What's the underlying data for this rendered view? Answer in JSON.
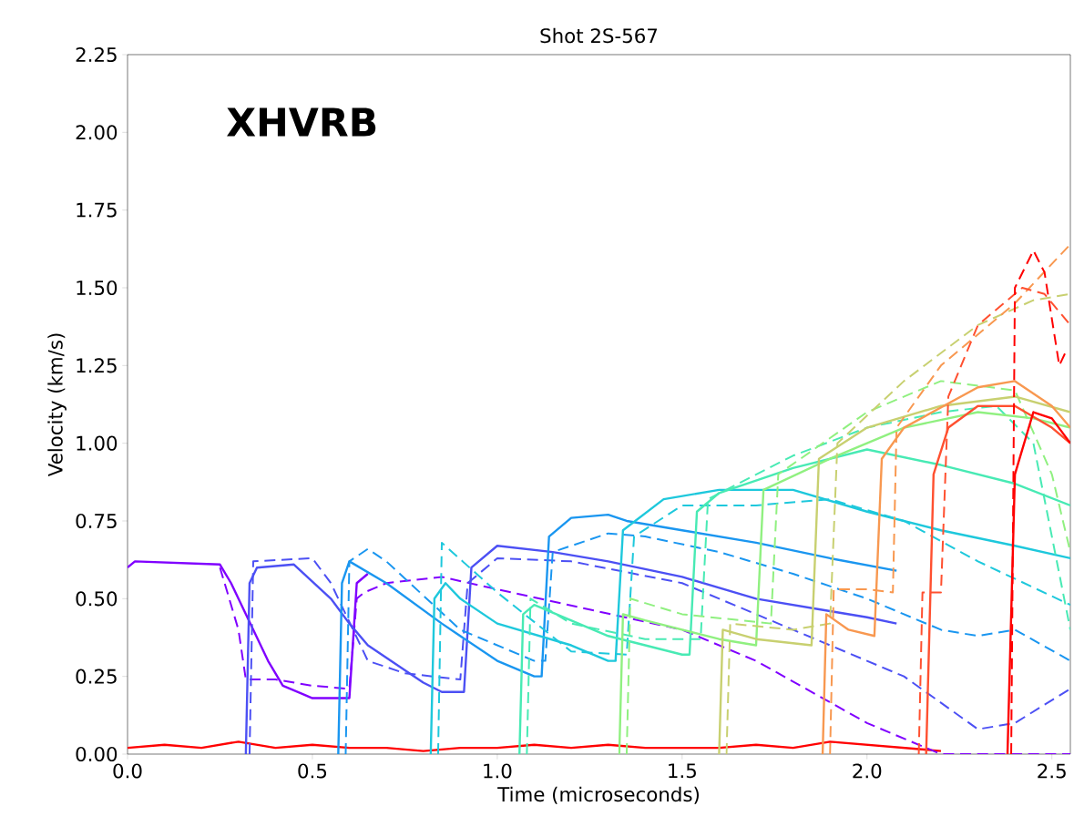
{
  "chart_data": {
    "type": "line",
    "title": "Shot 2S-567",
    "xlabel": "Time (microseconds)",
    "ylabel": "Velocity (km/s)",
    "annotations": [
      "XHVRB"
    ],
    "xlim": [
      0,
      2.55
    ],
    "ylim": [
      0,
      2.25
    ],
    "xticks": [
      {
        "value": 0,
        "label": "0.0"
      },
      {
        "value": 0.5,
        "label": "0.5"
      },
      {
        "value": 1,
        "label": "1.0"
      },
      {
        "value": 1.5,
        "label": "1.5"
      },
      {
        "value": 2,
        "label": "2.0"
      },
      {
        "value": 2.5,
        "label": "2.5"
      }
    ],
    "yticks": [
      {
        "value": 0,
        "label": "0.00"
      },
      {
        "value": 0.25,
        "label": "0.25"
      },
      {
        "value": 0.5,
        "label": "0.50"
      },
      {
        "value": 0.75,
        "label": "0.75"
      },
      {
        "value": 1,
        "label": "1.00"
      },
      {
        "value": 1.25,
        "label": "1.25"
      },
      {
        "value": 1.5,
        "label": "1.50"
      },
      {
        "value": 1.75,
        "label": "1.75"
      },
      {
        "value": 2,
        "label": "2.00"
      },
      {
        "value": 2.25,
        "label": "2.25"
      }
    ],
    "series": [
      {
        "color": "#ff0000",
        "line_style": "solid",
        "x": [
          0,
          0.1,
          0.2,
          0.3,
          0.4,
          0.5,
          0.6,
          0.7,
          0.8,
          0.9,
          1.0,
          1.1,
          1.2,
          1.3,
          1.4,
          1.5,
          1.6,
          1.7,
          1.8,
          1.9,
          2.0,
          2.1,
          2.2
        ],
        "values": [
          0.02,
          0.03,
          0.02,
          0.04,
          0.02,
          0.03,
          0.02,
          0.02,
          0.01,
          0.02,
          0.02,
          0.03,
          0.02,
          0.03,
          0.02,
          0.02,
          0.02,
          0.03,
          0.02,
          0.04,
          0.03,
          0.02,
          0.01
        ]
      },
      {
        "color": "#8000ff",
        "line_style": "solid",
        "x": [
          0,
          0.02,
          0.25,
          0.28,
          0.38,
          0.42,
          0.5,
          0.6,
          0.62,
          0.65
        ],
        "values": [
          0.6,
          0.62,
          0.61,
          0.55,
          0.3,
          0.22,
          0.18,
          0.18,
          0.55,
          0.58
        ]
      },
      {
        "color": "#8000ff",
        "line_style": "dashed",
        "x": [
          0.25,
          0.3,
          0.32,
          0.4,
          0.5,
          0.6,
          0.62,
          0.64,
          0.7,
          0.85,
          1.0,
          1.5,
          1.7,
          2.0,
          2.2,
          2.55
        ],
        "values": [
          0.6,
          0.4,
          0.24,
          0.24,
          0.22,
          0.21,
          0.5,
          0.52,
          0.55,
          0.57,
          0.53,
          0.4,
          0.3,
          0.1,
          0,
          0
        ]
      },
      {
        "color": "#4c50f4",
        "line_style": "solid",
        "x": [
          0.32,
          0.33,
          0.35,
          0.45,
          0.55,
          0.6,
          0.65,
          0.8,
          0.85,
          0.91,
          0.93,
          1.0,
          1.15,
          1.3,
          1.5,
          1.7,
          1.9,
          2.0,
          2.08
        ],
        "values": [
          0,
          0.55,
          0.6,
          0.61,
          0.5,
          0.42,
          0.35,
          0.23,
          0.2,
          0.2,
          0.6,
          0.67,
          0.65,
          0.62,
          0.57,
          0.5,
          0.46,
          0.44,
          0.42
        ]
      },
      {
        "color": "#4c50f4",
        "line_style": "dashed",
        "x": [
          0.33,
          0.34,
          0.5,
          0.55,
          0.65,
          0.75,
          0.9,
          0.92,
          1.0,
          1.2,
          1.5,
          1.8,
          2.1,
          2.3,
          2.4,
          2.55
        ],
        "values": [
          0,
          0.62,
          0.63,
          0.55,
          0.3,
          0.26,
          0.24,
          0.55,
          0.63,
          0.62,
          0.55,
          0.4,
          0.25,
          0.08,
          0.1,
          0.21
        ]
      },
      {
        "color": "#1a96f0",
        "line_style": "solid",
        "x": [
          0.57,
          0.58,
          0.6,
          0.7,
          0.85,
          1.0,
          1.1,
          1.12,
          1.14,
          1.2,
          1.3,
          1.35,
          1.5,
          1.7,
          1.9,
          2.08
        ],
        "values": [
          0,
          0.55,
          0.62,
          0.55,
          0.42,
          0.3,
          0.25,
          0.25,
          0.7,
          0.76,
          0.77,
          0.75,
          0.72,
          0.68,
          0.63,
          0.59
        ]
      },
      {
        "color": "#1a96f0",
        "line_style": "dashed",
        "x": [
          0.59,
          0.6,
          0.65,
          0.7,
          0.9,
          1.1,
          1.13,
          1.15,
          1.3,
          1.4,
          1.6,
          1.8,
          2.0,
          2.2,
          2.3,
          2.4,
          2.55
        ],
        "values": [
          0,
          0.62,
          0.66,
          0.62,
          0.4,
          0.3,
          0.3,
          0.65,
          0.71,
          0.7,
          0.65,
          0.58,
          0.5,
          0.4,
          0.38,
          0.4,
          0.3
        ]
      },
      {
        "color": "#1ec8dc",
        "line_style": "solid",
        "x": [
          0.82,
          0.83,
          0.86,
          0.9,
          1.0,
          1.2,
          1.3,
          1.32,
          1.34,
          1.45,
          1.6,
          1.8,
          2.0,
          2.2,
          2.4,
          2.55
        ],
        "values": [
          0,
          0.5,
          0.55,
          0.5,
          0.42,
          0.35,
          0.3,
          0.3,
          0.72,
          0.82,
          0.85,
          0.85,
          0.78,
          0.72,
          0.67,
          0.63
        ]
      },
      {
        "color": "#1ec8dc",
        "line_style": "dashed",
        "x": [
          0.84,
          0.85,
          1.0,
          1.2,
          1.35,
          1.37,
          1.5,
          1.7,
          1.9,
          2.1,
          2.3,
          2.55
        ],
        "values": [
          0,
          0.68,
          0.52,
          0.33,
          0.32,
          0.7,
          0.8,
          0.8,
          0.82,
          0.75,
          0.62,
          0.48
        ]
      },
      {
        "color": "#48eab4",
        "line_style": "solid",
        "x": [
          1.06,
          1.07,
          1.1,
          1.3,
          1.5,
          1.52,
          1.54,
          1.6,
          1.8,
          2.0,
          2.2,
          2.4,
          2.55
        ],
        "values": [
          0,
          0.45,
          0.48,
          0.38,
          0.32,
          0.32,
          0.78,
          0.84,
          0.92,
          0.98,
          0.93,
          0.87,
          0.8
        ]
      },
      {
        "color": "#48eab4",
        "line_style": "dashed",
        "x": [
          1.08,
          1.09,
          1.2,
          1.4,
          1.55,
          1.57,
          1.8,
          2.0,
          2.2,
          2.35,
          2.45,
          2.55
        ],
        "values": [
          0,
          0.5,
          0.42,
          0.37,
          0.37,
          0.82,
          0.96,
          1.05,
          1.1,
          1.12,
          1.0,
          0.4
        ]
      },
      {
        "color": "#90f080",
        "line_style": "solid",
        "x": [
          1.33,
          1.34,
          1.4,
          1.6,
          1.7,
          1.72,
          1.9,
          2.1,
          2.3,
          2.45,
          2.55
        ],
        "values": [
          0,
          0.45,
          0.43,
          0.37,
          0.35,
          0.85,
          0.95,
          1.05,
          1.1,
          1.08,
          1.05
        ]
      },
      {
        "color": "#90f080",
        "line_style": "dashed",
        "x": [
          1.35,
          1.36,
          1.5,
          1.74,
          1.76,
          2.0,
          2.2,
          2.4,
          2.5,
          2.55
        ],
        "values": [
          0,
          0.5,
          0.45,
          0.42,
          0.9,
          1.1,
          1.2,
          1.17,
          0.9,
          0.65
        ]
      },
      {
        "color": "#c8d070",
        "line_style": "solid",
        "x": [
          1.6,
          1.61,
          1.7,
          1.85,
          1.87,
          2.0,
          2.2,
          2.4,
          2.55
        ],
        "values": [
          0,
          0.4,
          0.37,
          0.35,
          0.95,
          1.05,
          1.12,
          1.15,
          1.1
        ]
      },
      {
        "color": "#c8d070",
        "line_style": "dashed",
        "x": [
          1.62,
          1.63,
          1.8,
          1.9,
          1.92,
          2.1,
          2.3,
          2.45,
          2.55
        ],
        "values": [
          0,
          0.42,
          0.4,
          0.42,
          1.0,
          1.2,
          1.38,
          1.46,
          1.48
        ]
      },
      {
        "color": "#f89850",
        "line_style": "solid",
        "x": [
          1.88,
          1.89,
          1.95,
          2.02,
          2.04,
          2.1,
          2.3,
          2.4,
          2.5,
          2.55
        ],
        "values": [
          0,
          0.45,
          0.4,
          0.38,
          0.95,
          1.05,
          1.18,
          1.2,
          1.12,
          1.05
        ]
      },
      {
        "color": "#f89850",
        "line_style": "dashed",
        "x": [
          1.9,
          1.91,
          2.0,
          2.07,
          2.08,
          2.2,
          2.4,
          2.55
        ],
        "values": [
          0,
          0.53,
          0.53,
          0.52,
          1.05,
          1.25,
          1.45,
          1.64
        ]
      },
      {
        "color": "#ff5030",
        "line_style": "solid",
        "x": [
          2.16,
          2.18,
          2.22,
          2.3,
          2.4,
          2.5,
          2.55
        ],
        "values": [
          0,
          0.9,
          1.05,
          1.12,
          1.12,
          1.05,
          1.0
        ]
      },
      {
        "color": "#ff5030",
        "line_style": "dashed",
        "x": [
          2.14,
          2.15,
          2.2,
          2.22,
          2.3,
          2.42,
          2.48,
          2.55
        ],
        "values": [
          0,
          0.52,
          0.52,
          1.15,
          1.38,
          1.5,
          1.48,
          1.38
        ]
      },
      {
        "color": "#ff0000",
        "line_style": "solid",
        "x": [
          2.38,
          2.4,
          2.45,
          2.5,
          2.55
        ],
        "values": [
          0,
          0.9,
          1.1,
          1.08,
          1.0
        ]
      },
      {
        "color": "#ff0000",
        "line_style": "dashed",
        "x": [
          2.39,
          2.4,
          2.45,
          2.48,
          2.52,
          2.54
        ],
        "values": [
          0,
          1.5,
          1.62,
          1.55,
          1.25,
          1.3
        ]
      }
    ]
  }
}
